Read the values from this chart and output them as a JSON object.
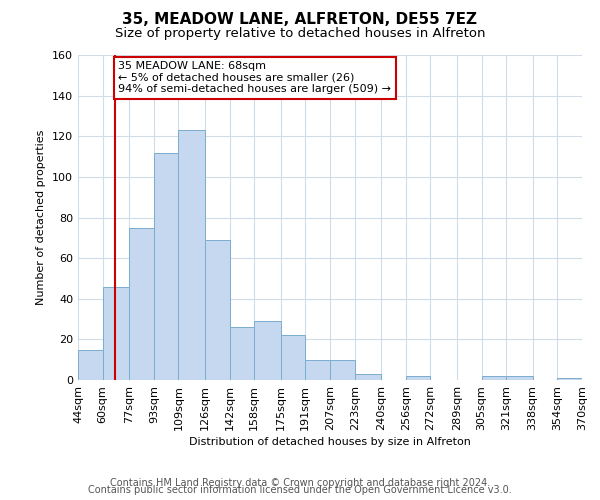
{
  "title": "35, MEADOW LANE, ALFRETON, DE55 7EZ",
  "subtitle": "Size of property relative to detached houses in Alfreton",
  "xlabel": "Distribution of detached houses by size in Alfreton",
  "ylabel": "Number of detached properties",
  "bins": [
    "44sqm",
    "60sqm",
    "77sqm",
    "93sqm",
    "109sqm",
    "126sqm",
    "142sqm",
    "158sqm",
    "175sqm",
    "191sqm",
    "207sqm",
    "223sqm",
    "240sqm",
    "256sqm",
    "272sqm",
    "289sqm",
    "305sqm",
    "321sqm",
    "338sqm",
    "354sqm",
    "370sqm"
  ],
  "bin_edges": [
    44,
    60,
    77,
    93,
    109,
    126,
    142,
    158,
    175,
    191,
    207,
    223,
    240,
    256,
    272,
    289,
    305,
    321,
    338,
    354,
    370
  ],
  "values": [
    15,
    46,
    75,
    112,
    123,
    69,
    26,
    29,
    22,
    10,
    10,
    3,
    0,
    2,
    0,
    0,
    2,
    2,
    0,
    1
  ],
  "bar_color": "#c5d8ef",
  "bar_edge_color": "#7aadcf",
  "reference_line_x": 68,
  "reference_line_color": "#cc0000",
  "annotation_line1": "35 MEADOW LANE: 68sqm",
  "annotation_line2": "← 5% of detached houses are smaller (26)",
  "annotation_line3": "94% of semi-detached houses are larger (509) →",
  "annotation_box_color": "#ffffff",
  "annotation_box_edge_color": "#cc0000",
  "ylim": [
    0,
    160
  ],
  "yticks": [
    0,
    20,
    40,
    60,
    80,
    100,
    120,
    140,
    160
  ],
  "footer_line1": "Contains HM Land Registry data © Crown copyright and database right 2024.",
  "footer_line2": "Contains public sector information licensed under the Open Government Licence v3.0.",
  "background_color": "#ffffff",
  "plot_bg_color": "#ffffff",
  "grid_color": "#d0dce8",
  "title_fontsize": 11,
  "subtitle_fontsize": 9.5,
  "axis_fontsize": 8,
  "tick_fontsize": 8,
  "footer_fontsize": 7
}
